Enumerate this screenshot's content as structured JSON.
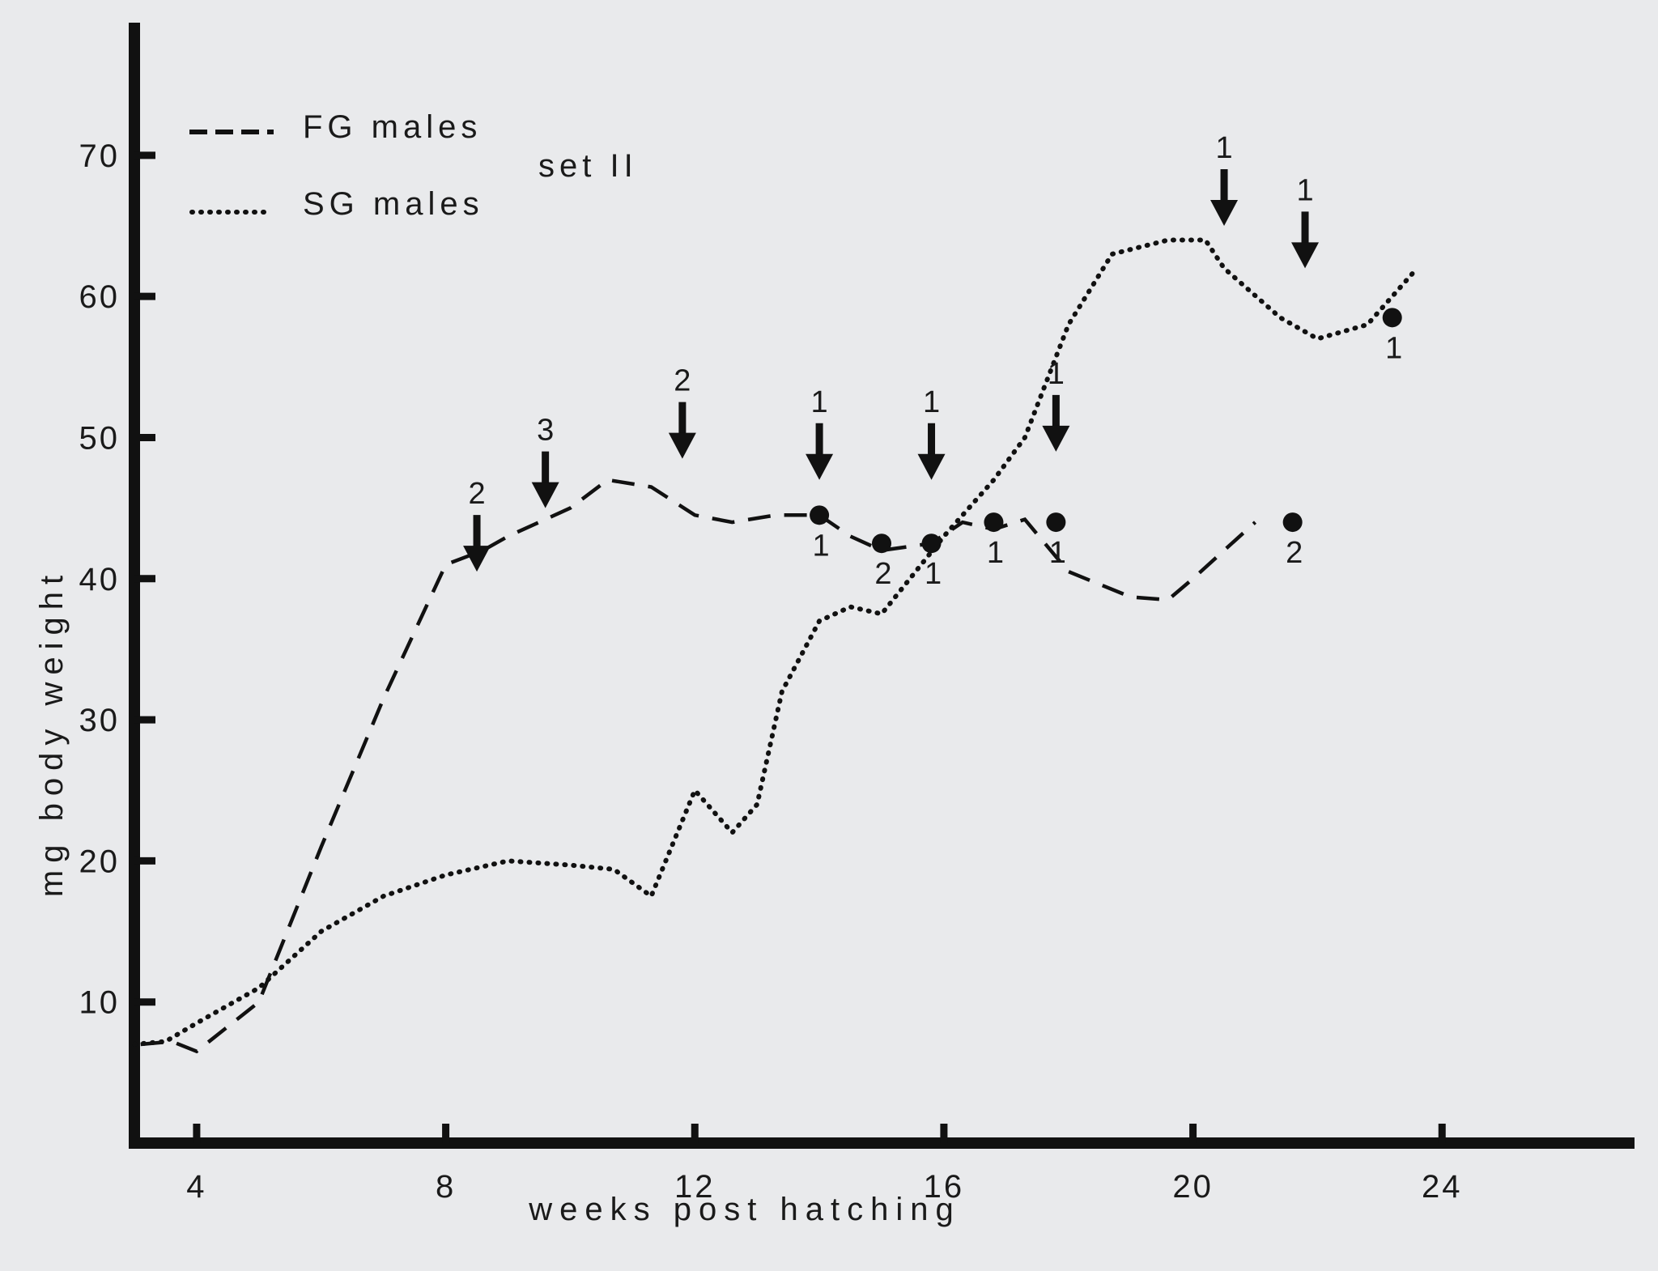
{
  "chart_data": {
    "type": "line",
    "set_label": "set II",
    "xlabel": "weeks post hatching",
    "ylabel": "mg body weight",
    "xlim": [
      3,
      27
    ],
    "ylim": [
      0,
      79
    ],
    "x_ticks": [
      4,
      8,
      12,
      16,
      20,
      24
    ],
    "y_ticks": [
      10,
      20,
      30,
      40,
      50,
      60,
      70
    ],
    "legend": {
      "position": "top-left"
    },
    "series": [
      {
        "name": "FG males",
        "style": "dashed",
        "points": [
          [
            3.1,
            7
          ],
          [
            3.6,
            7.2
          ],
          [
            4,
            6.5
          ],
          [
            5,
            10
          ],
          [
            6,
            21
          ],
          [
            7,
            31.5
          ],
          [
            8,
            41
          ],
          [
            8.6,
            42
          ],
          [
            9,
            43
          ],
          [
            10,
            45
          ],
          [
            10.6,
            47
          ],
          [
            11.3,
            46.5
          ],
          [
            12,
            44.5
          ],
          [
            12.6,
            44
          ],
          [
            13.3,
            44.5
          ],
          [
            14,
            44.5
          ],
          [
            14.5,
            43
          ],
          [
            15,
            42
          ],
          [
            15.8,
            42.5
          ],
          [
            16.3,
            44
          ],
          [
            16.8,
            43.5
          ],
          [
            17.3,
            44.2
          ],
          [
            18,
            40.5
          ],
          [
            19,
            38.7
          ],
          [
            19.6,
            38.5
          ],
          [
            20,
            40
          ],
          [
            20.5,
            42
          ],
          [
            21,
            44
          ]
        ],
        "markers": [
          {
            "x": 14,
            "y": 44.5,
            "label": "1"
          },
          {
            "x": 15,
            "y": 42.5,
            "label": "2"
          },
          {
            "x": 15.8,
            "y": 42.5,
            "label": "1"
          },
          {
            "x": 16.8,
            "y": 44,
            "label": "1"
          },
          {
            "x": 17.8,
            "y": 44,
            "label": "1"
          },
          {
            "x": 21.6,
            "y": 44,
            "label": "2"
          }
        ]
      },
      {
        "name": "SG males",
        "style": "dotted",
        "points": [
          [
            3,
            7
          ],
          [
            3.5,
            7.2
          ],
          [
            4,
            8.5
          ],
          [
            5,
            11
          ],
          [
            6,
            15
          ],
          [
            7,
            17.5
          ],
          [
            8,
            19
          ],
          [
            8.5,
            19.5
          ],
          [
            9,
            20
          ],
          [
            10,
            19.7
          ],
          [
            10.7,
            19.4
          ],
          [
            11.3,
            17.5
          ],
          [
            12,
            25
          ],
          [
            12.6,
            22
          ],
          [
            13,
            24
          ],
          [
            13.4,
            32
          ],
          [
            14,
            37
          ],
          [
            14.5,
            38
          ],
          [
            15,
            37.5
          ],
          [
            16,
            43
          ],
          [
            16.8,
            47
          ],
          [
            17.3,
            50
          ],
          [
            18,
            58
          ],
          [
            18.7,
            63
          ],
          [
            19.6,
            64
          ],
          [
            20.2,
            64
          ],
          [
            20.5,
            62
          ],
          [
            21.4,
            58.5
          ],
          [
            22,
            57
          ],
          [
            22.8,
            58
          ],
          [
            23.6,
            62
          ]
        ],
        "markers": [
          {
            "x": 23.2,
            "y": 58.5,
            "label": "1"
          }
        ]
      }
    ],
    "arrows": [
      {
        "x": 8.5,
        "y": 40.5,
        "label": "2"
      },
      {
        "x": 9.6,
        "y": 45,
        "label": "3"
      },
      {
        "x": 11.8,
        "y": 48.5,
        "label": "2"
      },
      {
        "x": 14,
        "y": 47,
        "label": "1"
      },
      {
        "x": 15.8,
        "y": 47,
        "label": "1"
      },
      {
        "x": 17.8,
        "y": 49,
        "label": "1"
      },
      {
        "x": 20.5,
        "y": 65,
        "label": "1"
      },
      {
        "x": 21.8,
        "y": 62,
        "label": "1"
      }
    ]
  }
}
